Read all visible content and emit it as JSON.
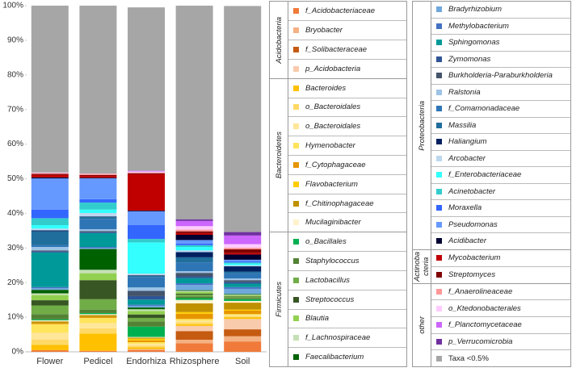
{
  "chart_data": {
    "type": "stacked-bar",
    "categories": [
      "Flower",
      "Pedicel",
      "Endorhiza",
      "Rhizosphere",
      "Soil"
    ],
    "ylim": [
      0,
      100
    ],
    "yticks": [
      {
        "value": 0,
        "label": "0%"
      },
      {
        "value": 10,
        "label": "10%"
      },
      {
        "value": 20,
        "label": "20%"
      },
      {
        "value": 30,
        "label": "30%"
      },
      {
        "value": 40,
        "label": "40%"
      },
      {
        "value": 50,
        "label": "50%"
      },
      {
        "value": 60,
        "label": "60%"
      },
      {
        "value": 70,
        "label": "70%"
      },
      {
        "value": 80,
        "label": "80%"
      },
      {
        "value": 90,
        "label": "90%"
      },
      {
        "value": 100,
        "label": "100%"
      }
    ],
    "groups": [
      {
        "name": "Acidobacteria",
        "series": [
          {
            "name": "f_Acidobacteriaceae",
            "color": "#f07a3a",
            "values": [
              0.5,
              0.3,
              0.5,
              2.5,
              3
            ]
          },
          {
            "name": "Bryobacter",
            "color": "#f4b183",
            "values": [
              0,
              0,
              0.3,
              1.0,
              1.5
            ]
          },
          {
            "name": "f_Solibacteraceae",
            "color": "#c55a11",
            "values": [
              0,
              0,
              0,
              2.5,
              2
            ]
          },
          {
            "name": "p_Acidobacteria",
            "color": "#f8cbad",
            "values": [
              0,
              0,
              0,
              1.5,
              3
            ]
          }
        ]
      },
      {
        "name": "Bacteroidetes",
        "series": [
          {
            "name": "Bacteroides",
            "color": "#ffc000",
            "values": [
              1.5,
              5,
              0.5,
              0.5,
              0.5
            ]
          },
          {
            "name": "o_Bacteroidales",
            "color": "#ffd966",
            "values": [
              1.5,
              1.5,
              0.5,
              0.5,
              0.3
            ]
          },
          {
            "name": "o_Bacteroidales",
            "color": "#ffe699",
            "values": [
              2,
              1.5,
              0.5,
              0.5,
              0.3
            ]
          },
          {
            "name": "Hymenobacter",
            "color": "#ffe45c",
            "values": [
              2.5,
              1.5,
              0.5,
              0.5,
              0.3
            ]
          },
          {
            "name": "f_Cytophagaceae",
            "color": "#e69500",
            "values": [
              0.3,
              0.3,
              0.5,
              1.5,
              1.0
            ]
          },
          {
            "name": "Flavobacterium",
            "color": "#ffcc00",
            "values": [
              0,
              0,
              0.5,
              0.5,
              0.3
            ]
          },
          {
            "name": "f_Chitinophagaceae",
            "color": "#bf9000",
            "values": [
              0.5,
              0.5,
              0.3,
              2.5,
              2
            ]
          },
          {
            "name": "Mucilaginibacter",
            "color": "#fff2cc",
            "values": [
              0.3,
              0.3,
              0.2,
              1.0,
              0.5
            ]
          }
        ]
      },
      {
        "name": "Firmicutes",
        "series": [
          {
            "name": "o_Bacillales",
            "color": "#00b050",
            "values": [
              0.3,
              0.3,
              3,
              0.5,
              0.5
            ]
          },
          {
            "name": "Staphylococcus",
            "color": "#548235",
            "values": [
              1.5,
              1.0,
              1.5,
              0.5,
              0.3
            ]
          },
          {
            "name": "Lactobacillus",
            "color": "#70ad47",
            "values": [
              2.5,
              3,
              1,
              0.5,
              0.3
            ]
          },
          {
            "name": "Streptococcus",
            "color": "#375623",
            "values": [
              1.5,
              5.5,
              1,
              0.3,
              0.2
            ]
          },
          {
            "name": "Blautia",
            "color": "#92d050",
            "values": [
              1.5,
              2.0,
              1,
              0.5,
              0.3
            ]
          },
          {
            "name": "f_Lachnospiraceae",
            "color": "#c5e0b4",
            "values": [
              0.5,
              1.0,
              0.5,
              0.3,
              0.2
            ]
          },
          {
            "name": "Faecalibacterium",
            "color": "#006100",
            "values": [
              1.0,
              6,
              0.5,
              0.2,
              0.2
            ]
          }
        ]
      },
      {
        "name": "Proteobacteria",
        "series": [
          {
            "name": "Bradyrhizobium",
            "color": "#6fa8dc",
            "values": [
              0.5,
              0.3,
              0.5,
              1.5,
              1.5
            ]
          },
          {
            "name": "Methylobacterium",
            "color": "#4472c4",
            "values": [
              0.3,
              0.3,
              0.3,
              0.5,
              0.5
            ]
          },
          {
            "name": "Sphingomonas",
            "color": "#009999",
            "values": [
              10,
              4,
              1.5,
              1.5,
              1.0
            ]
          },
          {
            "name": "Zymomonas",
            "color": "#2f5597",
            "values": [
              0.3,
              0.3,
              1.0,
              0.5,
              0.5
            ]
          },
          {
            "name": "Burkholderia-Paraburkholderia",
            "color": "#44546a",
            "values": [
              0.3,
              0.3,
              1.5,
              1.0,
              0.5
            ]
          },
          {
            "name": "Ralstonia",
            "color": "#9dc3e6",
            "values": [
              1.0,
              0.5,
              1.0,
              0.5,
              0.5
            ]
          },
          {
            "name": "f_Comamonadaceae",
            "color": "#2e75b6",
            "values": [
              0.5,
              3,
              3,
              2.5,
              1.5
            ]
          },
          {
            "name": "Massilia",
            "color": "#1f6e9c",
            "values": [
              4,
              0.5,
              0.3,
              1.5,
              0.5
            ]
          },
          {
            "name": "Haliangium",
            "color": "#002060",
            "values": [
              0.3,
              0.2,
              0.2,
              1.5,
              1.5
            ]
          },
          {
            "name": "Arcobacter",
            "color": "#bdd7ee",
            "values": [
              0.5,
              1.0,
              0.5,
              0.5,
              0.3
            ]
          },
          {
            "name": "f_Enterobacteriaceae",
            "color": "#33ffff",
            "values": [
              1.0,
              1.0,
              9,
              1.0,
              0.5
            ]
          },
          {
            "name": "Acinetobacter",
            "color": "#33cccc",
            "values": [
              2.0,
              2.0,
              1.0,
              0.5,
              0.3
            ]
          },
          {
            "name": "Moraxella",
            "color": "#3366ff",
            "values": [
              2.5,
              1.0,
              4,
              0.5,
              0.3
            ]
          },
          {
            "name": "Pseudomonas",
            "color": "#6699ff",
            "values": [
              9,
              6,
              4,
              1.0,
              0.5
            ]
          },
          {
            "name": "Acidibacter",
            "color": "#000033",
            "values": [
              0.3,
              0.2,
              0.2,
              1.5,
              1.5
            ]
          }
        ]
      },
      {
        "name": "Actinobacteria",
        "series": [
          {
            "name": "Mycobacterium",
            "color": "#c00000",
            "values": [
              0.7,
              0.5,
              10.5,
              0.5,
              0.5
            ]
          },
          {
            "name": "Streptomyces",
            "color": "#800000",
            "values": [
              0.3,
              0.3,
              0.3,
              0.5,
              1.0
            ]
          }
        ]
      },
      {
        "name": "other",
        "series": [
          {
            "name": "f_Anaerolineaceae",
            "color": "#ff9999",
            "values": [
              0.2,
              0.3,
              0.2,
              0.5,
              0.5
            ]
          },
          {
            "name": "o_Ktedonobacterales",
            "color": "#ffccff",
            "values": [
              0.2,
              0.1,
              0.3,
              1.0,
              1.0
            ]
          },
          {
            "name": "f_Planctomycetaceae",
            "color": "#cc66ff",
            "values": [
              0,
              0,
              0.2,
              1.5,
              2.5
            ]
          },
          {
            "name": "p_Verrucomicrobia",
            "color": "#7030a0",
            "values": [
              0,
              0,
              0,
              0.5,
              1.0
            ]
          },
          {
            "name": "Taxa <0.5%",
            "color": "#a6a6a6",
            "values": [
              48.2,
              48.5,
              47.2,
              61.7,
              65.3
            ]
          }
        ]
      }
    ]
  }
}
